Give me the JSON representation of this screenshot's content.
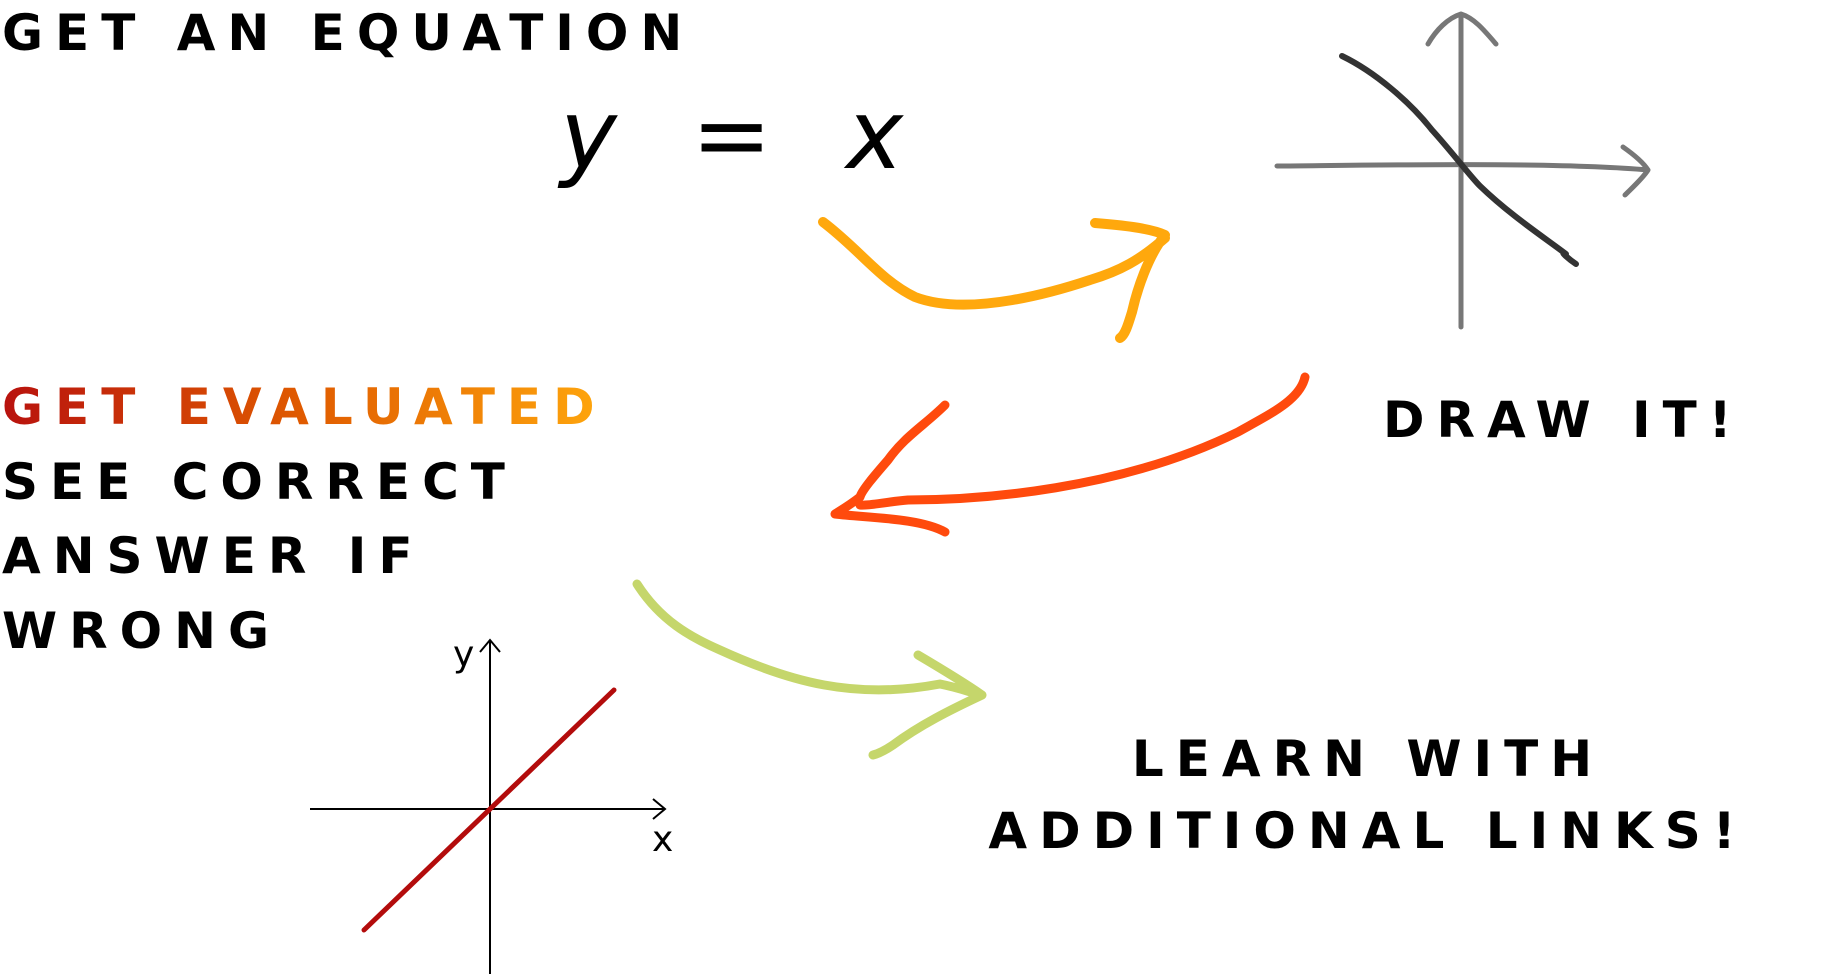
{
  "steps": {
    "get_equation": "GET AN EQUATION",
    "draw_it": "DRAW IT!",
    "get_evaluated": "GET EVALUATED",
    "see_correct_lines": [
      "SEE CORRECT",
      "ANSWER IF",
      "WRONG"
    ],
    "learn_lines": [
      "LEARN WITH",
      "ADDITIONAL LINKS!"
    ]
  },
  "equation": {
    "text": "y = x"
  },
  "sketch_graph": {
    "axis_color": "#777777",
    "curve_color": "#333333"
  },
  "correct_graph": {
    "x_label": "x",
    "y_label": "y",
    "line_color": "#b30c0c",
    "axis_color": "#000000"
  },
  "arrows": {
    "equation_to_draw": "#ffa80d",
    "draw_to_evaluate": "#ff4a0d",
    "evaluate_to_learn": "#c5d66b"
  },
  "gradient": {
    "start": "#b8120e",
    "middle": "#e05b00",
    "end": "#ffa70d"
  }
}
